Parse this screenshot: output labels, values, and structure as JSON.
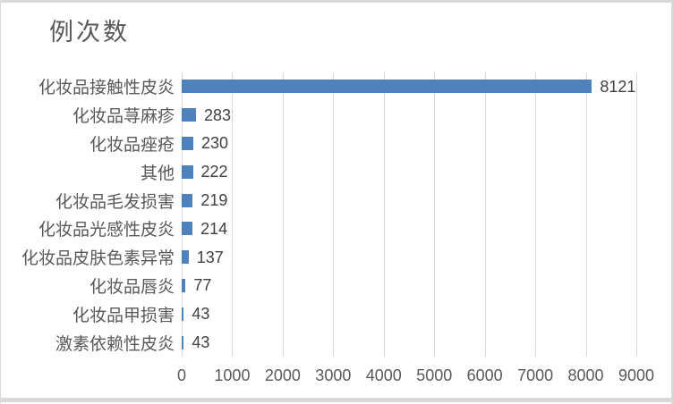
{
  "frame": {
    "background": "#ffffff",
    "border_color": "#d9d9d9",
    "edge_strip_color": "#d9d9d9"
  },
  "chart_data": {
    "type": "bar",
    "orientation": "horizontal",
    "title": "例次数",
    "categories": [
      "化妆品接触性皮炎",
      "化妆品荨麻疹",
      "化妆品痤疮",
      "其他",
      "化妆品毛发损害",
      "化妆品光感性皮炎",
      "化妆品皮肤色素异常",
      "化妆品唇炎",
      "化妆品甲损害",
      "激素依赖性皮炎"
    ],
    "values": [
      8121,
      283,
      230,
      222,
      219,
      214,
      137,
      77,
      43,
      43
    ],
    "data_labels": [
      "8121",
      "283",
      "230",
      "222",
      "219",
      "214",
      "137",
      "77",
      "43",
      "43"
    ],
    "xlabel": "",
    "ylabel": "",
    "xlim": [
      0,
      9000
    ],
    "x_ticks": [
      "0",
      "1000",
      "2000",
      "3000",
      "4000",
      "5000",
      "6000",
      "7000",
      "8000",
      "9000"
    ],
    "grid": "vertical-major",
    "legend": "none",
    "colors": {
      "bar": "#4F81BD",
      "gridline": "#D9D9D9",
      "title": "#595959",
      "category_label": "#595959",
      "value_label": "#404040",
      "tick_label": "#595959"
    }
  }
}
